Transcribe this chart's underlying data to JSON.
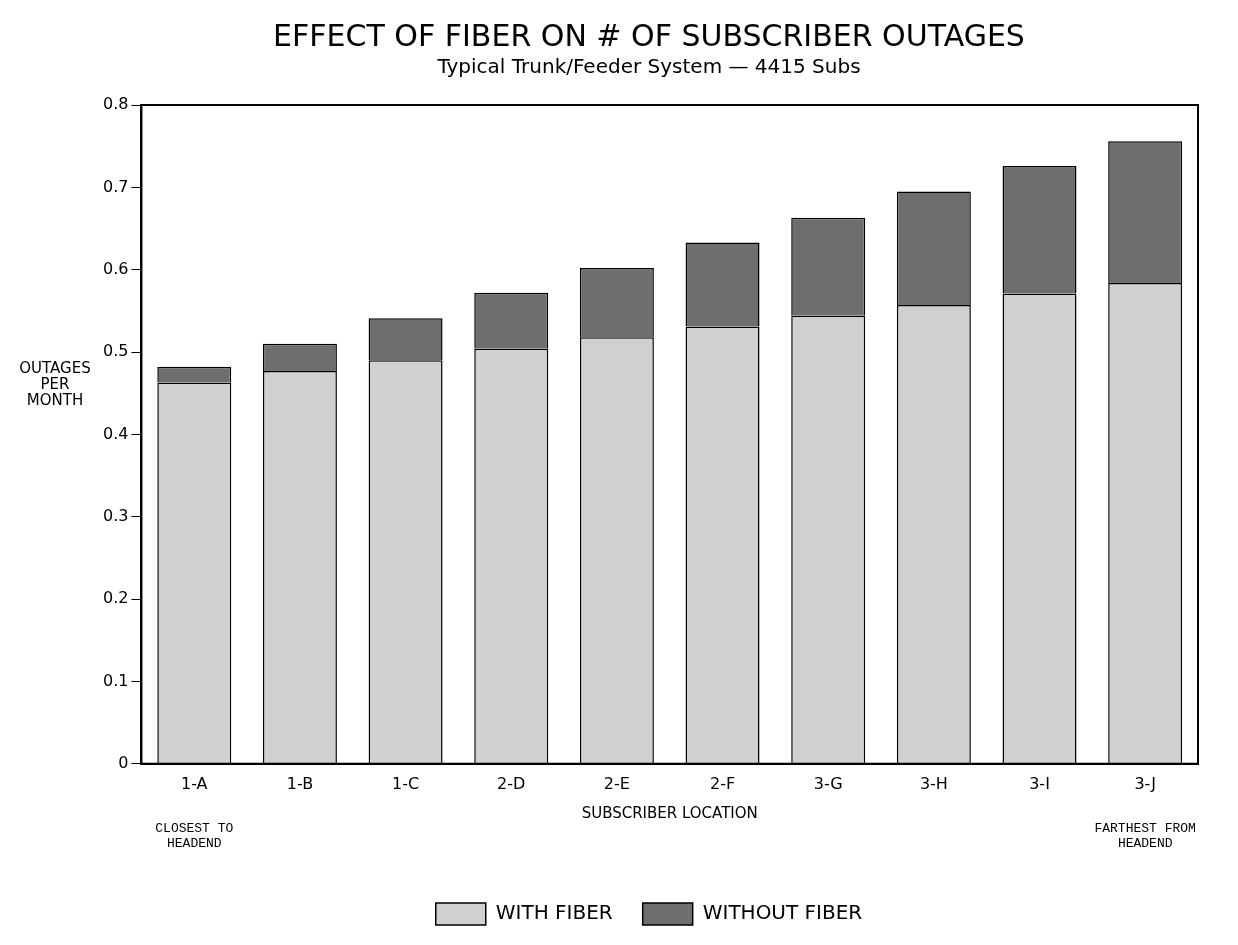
{
  "chart_data": {
    "type": "bar",
    "stacked": true,
    "title": "EFFECT OF FIBER ON # OF SUBSCRIBER OUTAGES",
    "subtitle": "Typical Trunk/Feeder System — 4415 Subs",
    "xlabel": "SUBSCRIBER LOCATION",
    "ylabel": "OUTAGES PER MONTH",
    "categories": [
      "1-A",
      "1-B",
      "1-C",
      "2-D",
      "2-E",
      "2-F",
      "3-G",
      "3-H",
      "3-I",
      "3-J"
    ],
    "series": [
      {
        "name": "WITH FIBER",
        "color": "#d0d0d0",
        "values": [
          0.463,
          0.477,
          0.49,
          0.504,
          0.518,
          0.531,
          0.544,
          0.557,
          0.571,
          0.584
        ]
      },
      {
        "name": "WITHOUT FIBER",
        "color": "#6e6e6e",
        "values": [
          0.019,
          0.033,
          0.051,
          0.068,
          0.084,
          0.102,
          0.119,
          0.138,
          0.155,
          0.172
        ]
      }
    ],
    "ylim": [
      0,
      0.8
    ],
    "yticks": [
      0,
      0.1,
      0.2,
      0.3,
      0.4,
      0.5,
      0.6,
      0.7,
      0.8
    ],
    "grid": false,
    "legend": "bottom",
    "annotations": [
      "CLOSEST TO HEADEND",
      "FARTHEST FROM HEADEND"
    ]
  }
}
